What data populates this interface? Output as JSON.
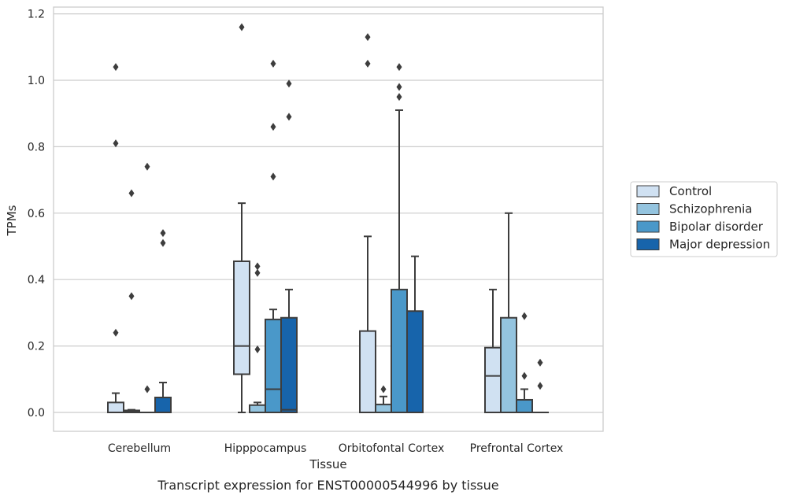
{
  "caption": "Transcript expression for ENST00000544996 by tissue",
  "chart_data": {
    "type": "box",
    "xlabel": "Tissue",
    "ylabel": "TPMs",
    "ylim": [
      -0.055,
      1.22
    ],
    "yticks": [
      "0.0",
      "0.2",
      "0.4",
      "0.6",
      "0.8",
      "1.0",
      "1.2"
    ],
    "grid": "horizontal",
    "legend_position": "right",
    "categories": [
      "Cerebellum",
      "Hipppocampus",
      "Orbitofontal Cortex",
      "Prefrontal Cortex"
    ],
    "series": [
      {
        "name": "Control",
        "color": "#d0e1f2",
        "boxes": [
          {
            "q1": 0.0,
            "median": 0.0,
            "q3": 0.03,
            "whisker_low": 0.0,
            "whisker_high": 0.058,
            "outliers": [
              0.24,
              0.81,
              1.04
            ]
          },
          {
            "q1": 0.115,
            "median": 0.2,
            "q3": 0.455,
            "whisker_low": 0.0,
            "whisker_high": 0.63,
            "outliers": [
              1.16
            ]
          },
          {
            "q1": 0.0,
            "median": 0.0,
            "q3": 0.245,
            "whisker_low": 0.0,
            "whisker_high": 0.53,
            "outliers": [
              1.05,
              1.13
            ]
          },
          {
            "q1": 0.0,
            "median": 0.11,
            "q3": 0.195,
            "whisker_low": 0.0,
            "whisker_high": 0.37,
            "outliers": []
          }
        ]
      },
      {
        "name": "Schizophrenia",
        "color": "#94c4df",
        "boxes": [
          {
            "q1": 0.0,
            "median": 0.004,
            "q3": 0.006,
            "whisker_low": 0.0,
            "whisker_high": 0.008,
            "outliers": [
              0.35,
              0.66
            ]
          },
          {
            "q1": 0.0,
            "median": 0.0,
            "q3": 0.022,
            "whisker_low": 0.0,
            "whisker_high": 0.03,
            "outliers": [
              0.19,
              0.42,
              0.44
            ]
          },
          {
            "q1": 0.0,
            "median": 0.0,
            "q3": 0.024,
            "whisker_low": 0.0,
            "whisker_high": 0.048,
            "outliers": [
              0.07
            ]
          },
          {
            "q1": 0.0,
            "median": 0.0,
            "q3": 0.285,
            "whisker_low": 0.0,
            "whisker_high": 0.6,
            "outliers": []
          }
        ]
      },
      {
        "name": "Bipolar disorder",
        "color": "#4a98c9",
        "boxes": [
          {
            "q1": 0.0,
            "median": 0.0,
            "q3": 0.0,
            "whisker_low": 0.0,
            "whisker_high": 0.0,
            "outliers": [
              0.07,
              0.74
            ]
          },
          {
            "q1": 0.0,
            "median": 0.07,
            "q3": 0.28,
            "whisker_low": 0.0,
            "whisker_high": 0.31,
            "outliers": [
              0.71,
              0.86,
              1.05
            ]
          },
          {
            "q1": 0.0,
            "median": 0.0,
            "q3": 0.37,
            "whisker_low": 0.0,
            "whisker_high": 0.91,
            "outliers": [
              0.95,
              0.98,
              1.04
            ]
          },
          {
            "q1": 0.0,
            "median": 0.0,
            "q3": 0.038,
            "whisker_low": 0.0,
            "whisker_high": 0.07,
            "outliers": [
              0.11,
              0.29
            ]
          }
        ]
      },
      {
        "name": "Major depression",
        "color": "#1764ab",
        "boxes": [
          {
            "q1": 0.0,
            "median": 0.0,
            "q3": 0.045,
            "whisker_low": 0.0,
            "whisker_high": 0.09,
            "outliers": [
              0.51,
              0.54
            ]
          },
          {
            "q1": 0.0,
            "median": 0.008,
            "q3": 0.285,
            "whisker_low": 0.0,
            "whisker_high": 0.37,
            "outliers": [
              0.89,
              0.99
            ]
          },
          {
            "q1": 0.0,
            "median": 0.0,
            "q3": 0.305,
            "whisker_low": 0.0,
            "whisker_high": 0.47,
            "outliers": []
          },
          {
            "q1": 0.0,
            "median": 0.0,
            "q3": 0.0,
            "whisker_low": 0.0,
            "whisker_high": 0.0,
            "outliers": [
              0.08,
              0.15
            ]
          }
        ]
      }
    ]
  }
}
